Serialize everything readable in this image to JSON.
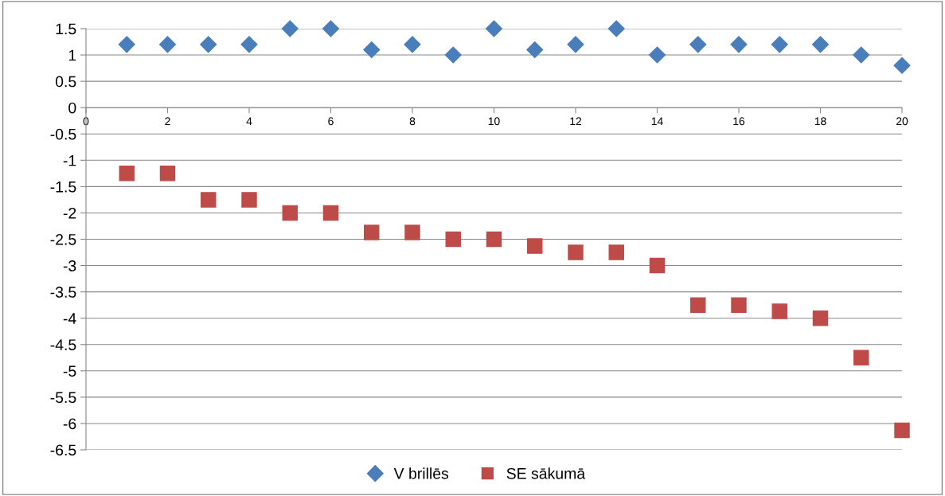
{
  "chart_data": {
    "type": "scatter",
    "x": [
      1,
      2,
      3,
      4,
      5,
      6,
      7,
      8,
      9,
      10,
      11,
      12,
      13,
      14,
      15,
      16,
      17,
      18,
      19,
      20
    ],
    "series": [
      {
        "name": "V brillēs",
        "color": "#4a7ebb",
        "marker": "diamond",
        "values": [
          1.2,
          1.2,
          1.2,
          1.2,
          1.5,
          1.5,
          1.1,
          1.2,
          1.0,
          1.5,
          1.1,
          1.2,
          1.5,
          1.0,
          1.2,
          1.2,
          1.2,
          1.2,
          1.0,
          0.8
        ]
      },
      {
        "name": "SE sākumā",
        "color": "#be4b48",
        "marker": "square",
        "values": [
          -1.25,
          -1.25,
          -1.75,
          -1.75,
          -2.0,
          -2.0,
          -2.37,
          -2.37,
          -2.5,
          -2.5,
          -2.63,
          -2.75,
          -2.75,
          -3.0,
          -3.75,
          -3.75,
          -3.87,
          -4.0,
          -4.75,
          -6.13
        ]
      }
    ],
    "xlim": [
      0,
      20
    ],
    "xticks": [
      0,
      2,
      4,
      6,
      8,
      10,
      12,
      14,
      16,
      18,
      20
    ],
    "ylim": [
      -6.5,
      1.5
    ],
    "yticks": [
      -6.5,
      -6,
      -5.5,
      -5,
      -4.5,
      -4,
      -3.5,
      -3,
      -2.5,
      -2,
      -1.5,
      -1,
      -0.5,
      0,
      0.5,
      1,
      1.5
    ],
    "grid": "y",
    "legend": "bottom"
  }
}
